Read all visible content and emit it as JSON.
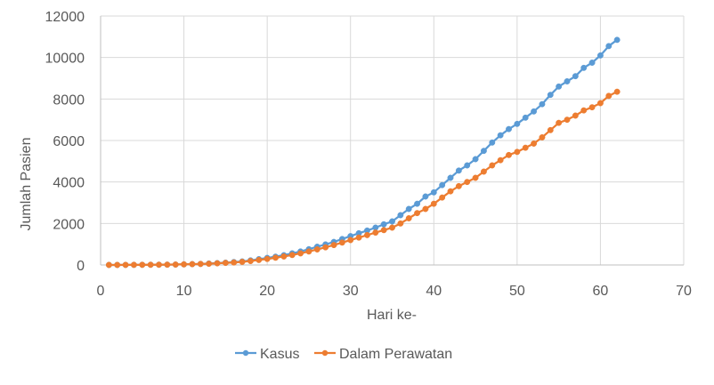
{
  "chart_data": {
    "type": "line",
    "title": "",
    "xlabel": "Hari ke-",
    "ylabel": "Jumlah Pasien",
    "xlim": [
      0,
      70
    ],
    "ylim": [
      0,
      12000
    ],
    "x_ticks": [
      0,
      10,
      20,
      30,
      40,
      50,
      60,
      70
    ],
    "y_ticks": [
      0,
      2000,
      4000,
      6000,
      8000,
      10000,
      12000
    ],
    "grid": true,
    "legend_position": "bottom",
    "x": [
      1,
      2,
      3,
      4,
      5,
      6,
      7,
      8,
      9,
      10,
      11,
      12,
      13,
      14,
      15,
      16,
      17,
      18,
      19,
      20,
      21,
      22,
      23,
      24,
      25,
      26,
      27,
      28,
      29,
      30,
      31,
      32,
      33,
      34,
      35,
      36,
      37,
      38,
      39,
      40,
      41,
      42,
      43,
      44,
      45,
      46,
      47,
      48,
      49,
      50,
      51,
      52,
      53,
      54,
      55,
      56,
      57,
      58,
      59,
      60,
      61,
      62
    ],
    "series": [
      {
        "name": "Kasus",
        "color": "#5B9BD5",
        "values": [
          2,
          2,
          4,
          6,
          8,
          10,
          12,
          15,
          20,
          30,
          40,
          50,
          70,
          90,
          110,
          140,
          170,
          220,
          280,
          340,
          400,
          470,
          560,
          650,
          760,
          880,
          990,
          1110,
          1250,
          1390,
          1530,
          1660,
          1800,
          1960,
          2100,
          2400,
          2700,
          2950,
          3300,
          3500,
          3850,
          4200,
          4550,
          4800,
          5100,
          5500,
          5900,
          6250,
          6550,
          6800,
          7100,
          7400,
          7750,
          8200,
          8600,
          8850,
          9100,
          9500,
          9750,
          10100,
          10550,
          10850
        ]
      },
      {
        "name": "Dalam Perawatan",
        "color": "#ED7D31",
        "values": [
          2,
          2,
          4,
          6,
          8,
          10,
          12,
          15,
          20,
          30,
          40,
          50,
          60,
          80,
          100,
          120,
          150,
          190,
          240,
          290,
          350,
          410,
          480,
          560,
          650,
          750,
          850,
          960,
          1080,
          1200,
          1320,
          1440,
          1560,
          1680,
          1800,
          2000,
          2250,
          2500,
          2700,
          2950,
          3250,
          3550,
          3800,
          4000,
          4200,
          4500,
          4800,
          5050,
          5300,
          5450,
          5650,
          5850,
          6150,
          6500,
          6850,
          7000,
          7200,
          7450,
          7600,
          7800,
          8150,
          8350
        ]
      }
    ]
  }
}
